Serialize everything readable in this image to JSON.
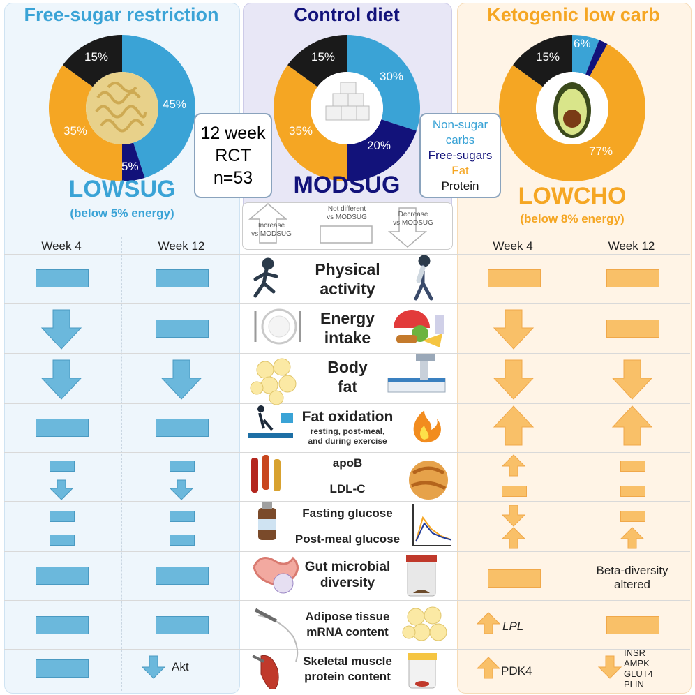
{
  "columns": {
    "left_title": "Free-sugar restriction",
    "mid_title": "Control diet",
    "right_title": "Ketogenic low carb"
  },
  "colors": {
    "blue": "#3aa3d6",
    "navy": "#12127a",
    "orange": "#f5a623",
    "black": "#1a1a1a",
    "blue_fill": "#6bb8dc",
    "orange_fill": "#f9c068"
  },
  "diets": {
    "lowsug": {
      "name": "LOWSUG",
      "sub": "(below 5% energy)",
      "pie": [
        {
          "label": "45%",
          "value": 45,
          "kind": "non-sugar carbs"
        },
        {
          "label": "5%",
          "value": 5,
          "kind": "free-sugars"
        },
        {
          "label": "35%",
          "value": 35,
          "kind": "fat"
        },
        {
          "label": "15%",
          "value": 15,
          "kind": "protein"
        }
      ]
    },
    "modsug": {
      "name": "MODSUG",
      "pie": [
        {
          "label": "30%",
          "value": 30,
          "kind": "non-sugar carbs"
        },
        {
          "label": "20%",
          "value": 20,
          "kind": "free-sugars"
        },
        {
          "label": "35%",
          "value": 35,
          "kind": "fat"
        },
        {
          "label": "15%",
          "value": 15,
          "kind": "protein"
        }
      ]
    },
    "lowcho": {
      "name": "LOWCHO",
      "sub": "(below 8% energy)",
      "pie": [
        {
          "label": "6%",
          "value": 6,
          "kind": "non-sugar carbs"
        },
        {
          "label": "",
          "value": 2,
          "kind": "free-sugars"
        },
        {
          "label": "77%",
          "value": 77,
          "kind": "fat"
        },
        {
          "label": "15%",
          "value": 15,
          "kind": "protein"
        }
      ]
    }
  },
  "rct": {
    "line1": "12 week",
    "line2": "RCT",
    "line3": "n=53"
  },
  "legend": {
    "nonsugar1": "Non-sugar",
    "nonsugar2": "carbs",
    "freesugars": "Free-sugars",
    "fat": "Fat",
    "protein": "Protein"
  },
  "key": {
    "increase1": "Increase",
    "increase2": "vs MODSUG",
    "same1": "Not different",
    "same2": "vs MODSUG",
    "decrease1": "Decrease",
    "decrease2": "vs MODSUG"
  },
  "weeks": {
    "w4": "Week 4",
    "w12": "Week 12"
  },
  "outcomes": {
    "physical1": "Physical",
    "physical2": "activity",
    "energy1": "Energy",
    "energy2": "intake",
    "bodyfat1": "Body",
    "bodyfat2": "fat",
    "fatox": "Fat oxidation",
    "fatox_sub1": "resting, post-meal,",
    "fatox_sub2": "and during exercise",
    "apob": "apoB",
    "ldl": "LDL-C",
    "fglu": "Fasting glucose",
    "pmglu": "Post-meal glucose",
    "gut1": "Gut microbial",
    "gut2": "diversity",
    "adipose1": "Adipose tissue",
    "adipose2": "mRNA content",
    "muscle1": "Skeletal muscle",
    "muscle2": "protein content"
  },
  "notes": {
    "akt": "Akt",
    "lpl": "LPL",
    "pdk4": "PDK4",
    "beta1": "Beta-diversity",
    "beta2": "altered",
    "insr": "INSR",
    "ampk": "AMPK",
    "glut4": "GLUT4",
    "plin": "PLIN"
  },
  "icons": [
    "runner-icon",
    "walker-icon",
    "plate-icon",
    "junk-food-icon",
    "fat-cells-icon",
    "dxa-scanner-icon",
    "treadmill-icon",
    "flame-icon",
    "blood-tubes-icon",
    "lipoprotein-icon",
    "drink-bottle-icon",
    "glucose-curve-icon",
    "intestine-icon",
    "stool-sample-icon",
    "syringe-hip-icon",
    "adipocytes-icon",
    "muscle-biopsy-icon",
    "sample-jar-icon",
    "pasta-icon",
    "sugar-cubes-icon",
    "avocado-icon"
  ]
}
